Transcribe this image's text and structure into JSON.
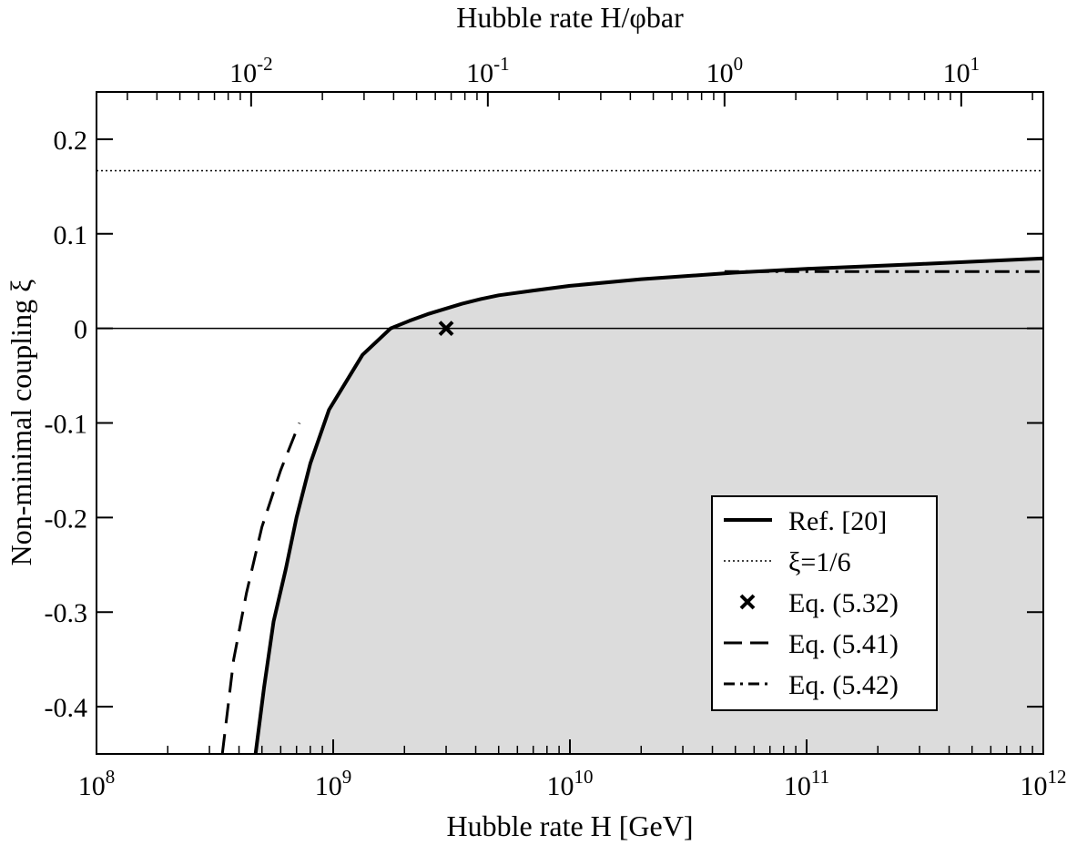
{
  "chart_data": {
    "type": "line",
    "xlabel": "Hubble rate H [GeV]",
    "x2label": "Hubble rate H/φbar",
    "ylabel": "Non-minimal coupling ξ",
    "xscale": "log",
    "x2scale": "log",
    "xlim": [
      100000000.0,
      1000000000000.0
    ],
    "ylim": [
      -0.45,
      0.25
    ],
    "x2_per_x": 2.222e-11,
    "x_ticks": [
      {
        "value": 100000000.0,
        "base": "10",
        "exp": "8"
      },
      {
        "value": 1000000000.0,
        "base": "10",
        "exp": "9"
      },
      {
        "value": 10000000000.0,
        "base": "10",
        "exp": "10"
      },
      {
        "value": 100000000000.0,
        "base": "10",
        "exp": "11"
      },
      {
        "value": 1000000000000.0,
        "base": "10",
        "exp": "12"
      }
    ],
    "x2_ticks": [
      {
        "value": 0.01,
        "base": "10",
        "exp": "-2"
      },
      {
        "value": 0.1,
        "base": "10",
        "exp": "-1"
      },
      {
        "value": 1,
        "base": "10",
        "exp": "0"
      },
      {
        "value": 10,
        "base": "10",
        "exp": "1"
      }
    ],
    "y_ticks": [
      {
        "value": 0.2,
        "label": "0.2"
      },
      {
        "value": 0.1,
        "label": "0.1"
      },
      {
        "value": 0,
        "label": "0"
      },
      {
        "value": -0.1,
        "label": "-0.1"
      },
      {
        "value": -0.2,
        "label": "-0.2"
      },
      {
        "value": -0.3,
        "label": "-0.3"
      },
      {
        "value": -0.4,
        "label": "-0.4"
      }
    ],
    "grid": false,
    "legend_position": "bottom-right",
    "shaded_region": {
      "bounded_by": "Ref. [20]",
      "color": "#dcdcdc"
    },
    "series": [
      {
        "name": "Ref. [20]",
        "style": "solid",
        "x": [
          470000000.0,
          510000000.0,
          560000000.0,
          630000000.0,
          700000000.0,
          800000000.0,
          960000000.0,
          1330000000.0,
          1750000000.0,
          2100000000.0,
          2500000000.0,
          3000000000.0,
          3500000000.0,
          4200000000.0,
          5000000000.0,
          7000000000.0,
          10000000000.0,
          20000000000.0,
          50000000000.0,
          100000000000.0,
          300000000000.0,
          1000000000000.0
        ],
        "y": [
          -0.45,
          -0.38,
          -0.31,
          -0.255,
          -0.2,
          -0.143,
          -0.086,
          -0.028,
          0.0,
          0.008,
          0.015,
          0.021,
          0.026,
          0.031,
          0.035,
          0.04,
          0.045,
          0.052,
          0.059,
          0.063,
          0.068,
          0.074
        ]
      },
      {
        "name": "ξ=1/6",
        "style": "dotted",
        "x": [
          100000000.0,
          1000000000000.0
        ],
        "y": [
          0.1667,
          0.1667
        ]
      },
      {
        "name": "Eq. (5.32)",
        "style": "marker-x",
        "x": [
          3000000000.0
        ],
        "y": [
          0.0
        ]
      },
      {
        "name": "Eq. (5.41)",
        "style": "dashed",
        "x": [
          340000000.0,
          380000000.0,
          430000000.0,
          500000000.0,
          600000000.0,
          720000000.0
        ],
        "y": [
          -0.45,
          -0.35,
          -0.28,
          -0.21,
          -0.15,
          -0.1
        ]
      },
      {
        "name": "Eq. (5.42)",
        "style": "dashdot",
        "x": [
          45000000000.0,
          1000000000000.0
        ],
        "y": [
          0.06,
          0.06
        ]
      }
    ]
  }
}
